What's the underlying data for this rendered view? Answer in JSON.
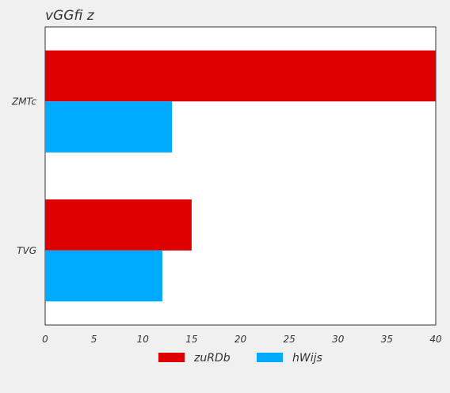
{
  "chart_data": {
    "type": "bar",
    "orientation": "horizontal",
    "title": "vGGfi  z",
    "categories": [
      "ZMTc",
      "TVG"
    ],
    "series": [
      {
        "name": "zuRDb",
        "values": [
          40,
          15
        ],
        "color": "#dc0000"
      },
      {
        "name": "hWijs",
        "values": [
          13,
          12
        ],
        "color": "#00aaff"
      }
    ],
    "x_ticks": [
      "0",
      "5",
      "10",
      "15",
      "20",
      "25",
      "30",
      "35",
      "40"
    ],
    "xlim": [
      0,
      40
    ],
    "grid": false,
    "legend_position": "bottom-center"
  }
}
